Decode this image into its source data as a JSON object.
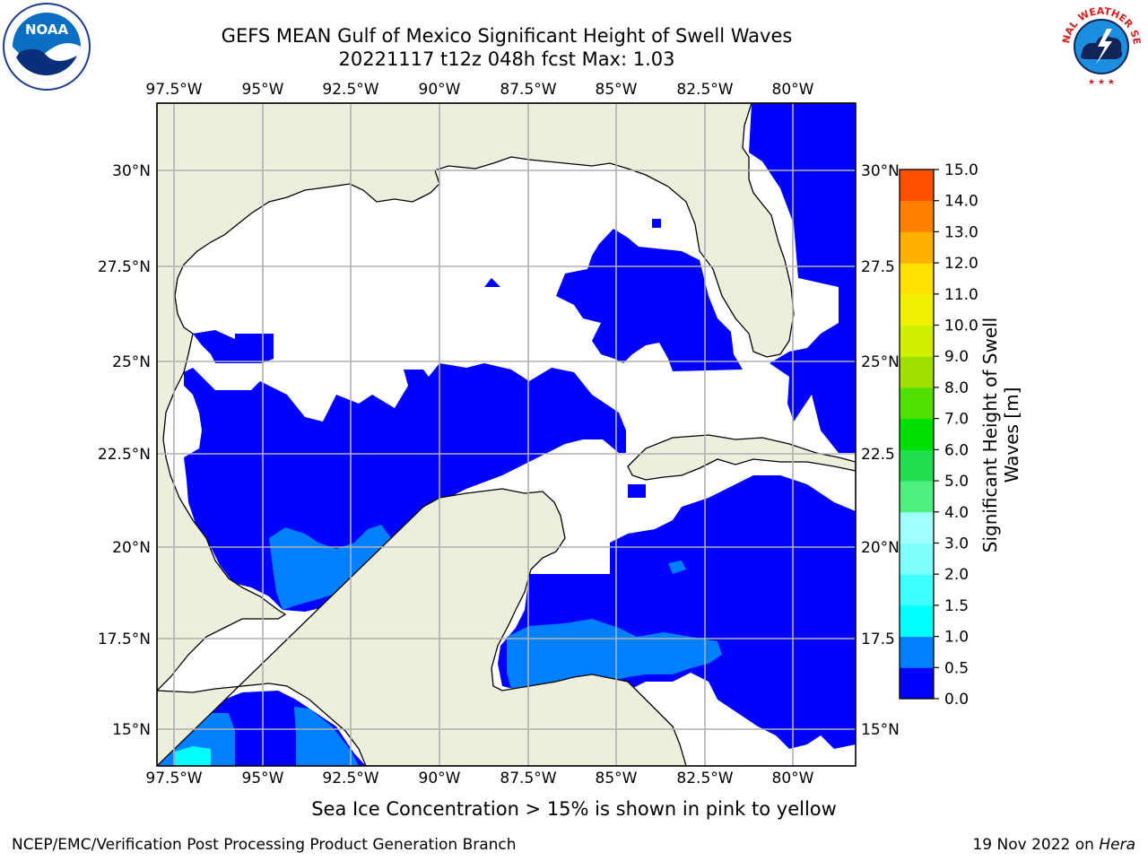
{
  "title_line1": "GEFS MEAN Gulf of Mexico Significant Height of Swell Waves",
  "title_line2": "20221117 t12z 048h fcst   Max: 1.03",
  "footer": {
    "left": "NCEP/EMC/Verification Post Processing Product Generation Branch",
    "right_date": "19 Nov 2022 on ",
    "right_host": "Hera"
  },
  "note": "Sea Ice Concentration > 15% is shown in pink to yellow",
  "map": {
    "lon_labels": [
      "97.5°W",
      "95°W",
      "92.5°W",
      "90°W",
      "87.5°W",
      "85°W",
      "82.5°W",
      "80°W"
    ],
    "lat_labels_left": [
      "30°N",
      "27.5°N",
      "25°N",
      "22.5°N",
      "20°N",
      "17.5°N",
      "15°N"
    ],
    "lat_labels_right": [
      "30°N",
      "27.5",
      "25°N",
      "22.5",
      "20°N",
      "17.5",
      "15°N"
    ],
    "lon_values": [
      -97.5,
      -95,
      -92.5,
      -90,
      -87.5,
      -85,
      -82.5,
      -80
    ],
    "lat_values": [
      30,
      27.5,
      25,
      22.5,
      20,
      17.5,
      15
    ],
    "land_color": "#eeeedd",
    "grid_color": "#b0b0b0"
  },
  "colorbar": {
    "label_line1": "Significant Height of Swell",
    "label_line2": "Waves [m]",
    "ticks": [
      "15.0",
      "14.0",
      "13.0",
      "12.0",
      "11.0",
      "10.0",
      "9.0",
      "8.0",
      "7.0",
      "6.0",
      "5.0",
      "4.0",
      "3.0",
      "2.0",
      "1.5",
      "1.0",
      "0.5",
      "0.0"
    ],
    "colors": [
      "#0000ff",
      "#0080ff",
      "#00ffff",
      "#40ffff",
      "#80ffff",
      "#a0ffff",
      "#50f080",
      "#20e050",
      "#00e000",
      "#50e000",
      "#a0e000",
      "#d0f000",
      "#f0f000",
      "#ffe000",
      "#ffb000",
      "#ff8000",
      "#ff5000",
      "#ff2000",
      "#ff0000"
    ]
  },
  "logos": {
    "noaa_text": "NOAA",
    "nws_text": "NATIONAL WEATHER SERVICE"
  }
}
